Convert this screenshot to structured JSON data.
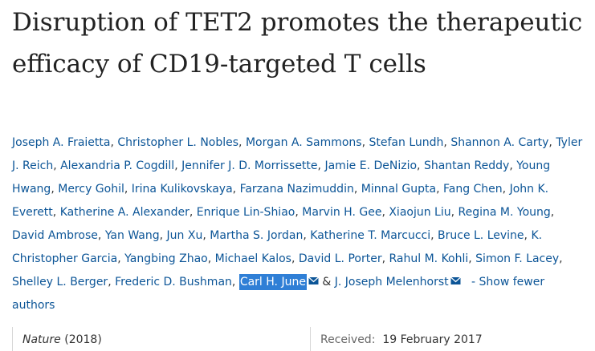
{
  "article": {
    "title": "Disruption of TET2 promotes the therapeutic efficacy of CD19-targeted T cells",
    "authors": [
      "Joseph A. Fraietta",
      "Christopher L. Nobles",
      "Morgan A. Sammons",
      "Stefan Lundh",
      "Shannon A. Carty",
      "Tyler J. Reich",
      "Alexandria P. Cogdill",
      "Jennifer J. D. Morrissette",
      "Jamie E. DeNizio",
      "Shantan Reddy",
      "Young Hwang",
      "Mercy Gohil",
      "Irina Kulikovskaya",
      "Farzana Nazimuddin",
      "Minnal Gupta",
      "Fang Chen",
      "John K. Everett",
      "Katherine A. Alexander",
      "Enrique Lin-Shiao",
      "Marvin H. Gee",
      "Xiaojun Liu",
      "Regina M. Young",
      "David Ambrose",
      "Yan Wang",
      "Jun Xu",
      "Martha S. Jordan",
      "Katherine T. Marcucci",
      "Bruce L. Levine",
      "K. Christopher Garcia",
      "Yangbing Zhao",
      "Michael Kalos",
      "David L. Porter",
      "Rahul M. Kohli",
      "Simon F. Lacey",
      "Shelley L. Berger",
      "Frederic D. Bushman"
    ],
    "corresponding_authors": [
      "Carl H. June",
      "J. Joseph Melenhorst"
    ],
    "separator": ", ",
    "ampersand": "&",
    "show_fewer_label": "- Show fewer authors",
    "journal": "Nature",
    "year": "(2018)",
    "received_label": "Received:",
    "received_date": "19 February 2017"
  },
  "colors": {
    "link": "#0c5597",
    "text": "#333333",
    "title": "#222222",
    "highlight": "#2f7fd6"
  },
  "icons": {
    "mail": "envelope-icon"
  }
}
